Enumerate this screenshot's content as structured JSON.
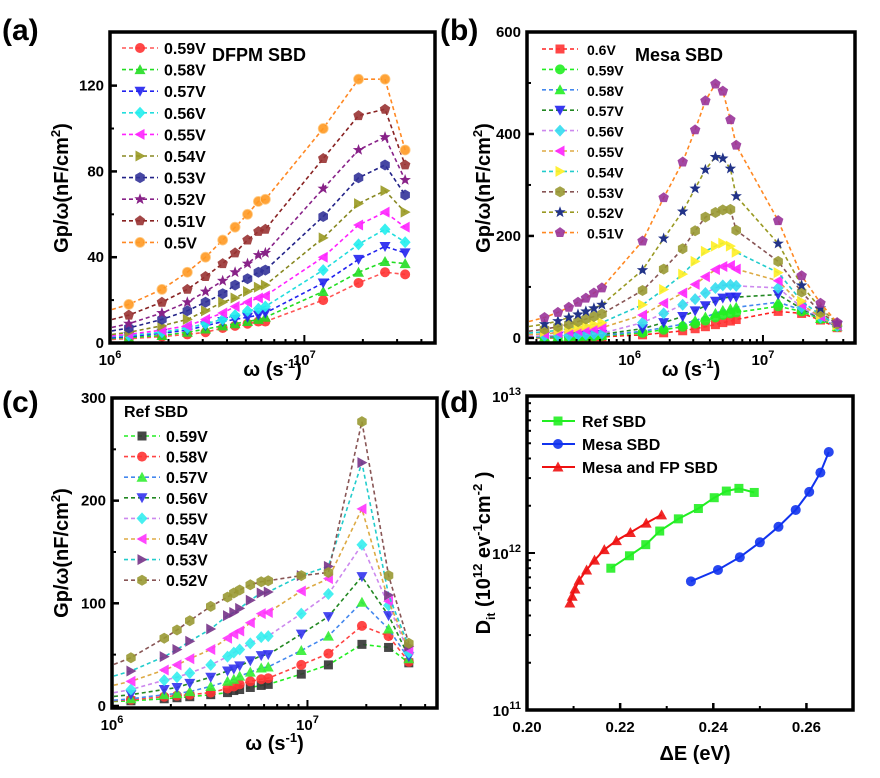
{
  "chart_data": [
    {
      "id": "a",
      "panel_label": "(a)",
      "type": "line",
      "title": "DFPM SBD",
      "xlabel": "ω (s⁻¹)",
      "ylabel": "Gp/ω(nF/cm²)",
      "xscale": "log",
      "xlim": [
        1000000,
        47000000
      ],
      "ylim": [
        0,
        145
      ],
      "yticks": [
        0,
        40,
        80,
        120
      ],
      "xticks": [
        {
          "value": 1000000,
          "base": "10",
          "exp": "6"
        },
        {
          "value": 10000000,
          "base": "10",
          "exp": "7"
        }
      ],
      "legend_position": "top-left",
      "x": [
        1250000,
        1850000,
        2500000,
        3100000,
        3800000,
        4400000,
        5100000,
        5800000,
        6300000,
        12500000,
        19000000,
        26000000,
        33000000
      ],
      "series": [
        {
          "name": "0.59V",
          "marker": "circle",
          "color": "#ff3333",
          "line_color": "#ff5555",
          "values": [
            2,
            3,
            4,
            5,
            7,
            8,
            9,
            10,
            10,
            20,
            28,
            33,
            32
          ]
        },
        {
          "name": "0.58V",
          "marker": "triangle-up",
          "color": "#22dd22",
          "line_color": "#22dd22",
          "values": [
            2.5,
            3.5,
            5,
            6.5,
            8,
            9,
            10,
            11,
            12,
            24,
            33,
            38,
            37
          ]
        },
        {
          "name": "0.57V",
          "marker": "triangle-down",
          "color": "#2222ee",
          "line_color": "#2222ee",
          "values": [
            3,
            4.5,
            6,
            8,
            10,
            11,
            12,
            13,
            14,
            28,
            39,
            45,
            42
          ]
        },
        {
          "name": "0.56V",
          "marker": "diamond",
          "color": "#22eeee",
          "line_color": "#22dddd",
          "values": [
            3.5,
            5,
            7,
            9,
            11,
            13,
            15,
            16,
            17,
            34,
            46,
            53,
            47
          ]
        },
        {
          "name": "0.55V",
          "marker": "triangle-left",
          "color": "#ff22ff",
          "line_color": "#ff22ff",
          "values": [
            4,
            6,
            8,
            11,
            14,
            17,
            19,
            21,
            22,
            40,
            55,
            61,
            54
          ]
        },
        {
          "name": "0.54V",
          "marker": "triangle-right",
          "color": "#999922",
          "line_color": "#888822",
          "values": [
            5,
            8,
            11,
            15,
            19,
            21,
            24,
            26,
            27,
            49,
            65,
            71,
            61
          ]
        },
        {
          "name": "0.53V",
          "marker": "hexagon",
          "color": "#333399",
          "line_color": "#222288",
          "values": [
            7,
            11,
            15,
            19,
            23,
            27,
            30,
            33,
            34,
            59,
            77,
            83,
            69
          ]
        },
        {
          "name": "0.52V",
          "marker": "star",
          "color": "#882288",
          "line_color": "#882288",
          "values": [
            9,
            14,
            19,
            24,
            29,
            33,
            37,
            41,
            42,
            72,
            90,
            96,
            76
          ]
        },
        {
          "name": "0.51V",
          "marker": "pentagon",
          "color": "#993333",
          "line_color": "#882222",
          "values": [
            13,
            19,
            25,
            31,
            37,
            42,
            48,
            52,
            53,
            86,
            106,
            109,
            83
          ]
        },
        {
          "name": "0.5V",
          "marker": "circle-open",
          "color": "#ff9922",
          "line_color": "#ff8822",
          "values": [
            18,
            25,
            33,
            40,
            48,
            54,
            60,
            66,
            67,
            100,
            123,
            123,
            90
          ]
        }
      ]
    },
    {
      "id": "b",
      "panel_label": "(b)",
      "type": "line",
      "title": "Mesa SBD",
      "xlabel": "ω (s⁻¹)",
      "ylabel": "Gp/ω(nF/cm²)",
      "xscale": "log",
      "xlim": [
        170000,
        49000000
      ],
      "ylim": [
        -10,
        600
      ],
      "yticks": [
        0,
        200,
        400,
        600
      ],
      "xticks": [
        {
          "value": 1000000,
          "base": "10",
          "exp": "6"
        },
        {
          "value": 10000000,
          "base": "10",
          "exp": "7"
        }
      ],
      "legend_position": "top-left",
      "x": [
        230000,
        290000,
        350000,
        410000,
        470000,
        540000,
        620000,
        1250000,
        1800000,
        2500000,
        3100000,
        3700000,
        4400000,
        5000000,
        5700000,
        6300000,
        13000000,
        19500000,
        27000000,
        36000000
      ],
      "series": [
        {
          "name": "0.6V",
          "marker": "square",
          "color": "#ff3333",
          "line_color": "#ff2222",
          "values": [
            0,
            0,
            1,
            1,
            1,
            2,
            2,
            6,
            10,
            14,
            18,
            22,
            26,
            30,
            33,
            36,
            52,
            48,
            35,
            20
          ]
        },
        {
          "name": "0.59V",
          "marker": "circle",
          "color": "#22ee22",
          "line_color": "#22ee22",
          "values": [
            1,
            1,
            2,
            2,
            3,
            3,
            4,
            10,
            16,
            22,
            28,
            34,
            40,
            45,
            48,
            50,
            62,
            52,
            37,
            22
          ]
        },
        {
          "name": "0.58V",
          "marker": "triangle-up",
          "color": "#22ee22",
          "line_color": "#4488ee",
          "values": [
            2,
            2,
            3,
            3,
            4,
            5,
            5,
            13,
            20,
            27,
            34,
            41,
            48,
            54,
            57,
            60,
            70,
            55,
            38,
            22
          ]
        },
        {
          "name": "0.57V",
          "marker": "triangle-down",
          "color": "#2222ee",
          "line_color": "#228822",
          "values": [
            3,
            3,
            4,
            5,
            5,
            6,
            7,
            18,
            30,
            42,
            53,
            63,
            72,
            78,
            80,
            80,
            85,
            57,
            39,
            23
          ]
        },
        {
          "name": "0.56V",
          "marker": "diamond",
          "color": "#33ddee",
          "line_color": "#cc88ee",
          "values": [
            4,
            5,
            5,
            6,
            7,
            8,
            9,
            30,
            48,
            65,
            76,
            88,
            98,
            103,
            104,
            102,
            98,
            60,
            40,
            23
          ]
        },
        {
          "name": "0.55V",
          "marker": "triangle-left",
          "color": "#ff22ff",
          "line_color": "#ddaa44",
          "values": [
            8,
            10,
            12,
            14,
            16,
            18,
            20,
            45,
            68,
            88,
            105,
            120,
            134,
            140,
            142,
            135,
            112,
            65,
            42,
            24
          ]
        },
        {
          "name": "0.54V",
          "marker": "triangle-right",
          "color": "#ffee22",
          "line_color": "#22cccc",
          "values": [
            12,
            15,
            18,
            21,
            24,
            27,
            30,
            65,
            95,
            125,
            150,
            170,
            180,
            186,
            180,
            168,
            128,
            72,
            45,
            25
          ]
        },
        {
          "name": "0.53V",
          "marker": "hexagon",
          "color": "#999933",
          "line_color": "#885555",
          "values": [
            17,
            22,
            27,
            32,
            37,
            42,
            47,
            93,
            135,
            175,
            210,
            237,
            246,
            251,
            252,
            211,
            150,
            90,
            50,
            27
          ]
        },
        {
          "name": "0.52V",
          "marker": "star",
          "color": "#223388",
          "line_color": "#999922",
          "values": [
            27,
            33,
            40,
            46,
            52,
            58,
            65,
            133,
            195,
            248,
            293,
            330,
            355,
            352,
            332,
            278,
            185,
            103,
            58,
            29
          ]
        },
        {
          "name": "0.51V",
          "marker": "pentagon",
          "color": "#993399",
          "line_color": "#ff8822",
          "values": [
            40,
            50,
            60,
            70,
            78,
            88,
            98,
            190,
            275,
            345,
            408,
            465,
            498,
            484,
            428,
            378,
            230,
            122,
            68,
            30
          ]
        }
      ]
    },
    {
      "id": "c",
      "panel_label": "(c)",
      "type": "line",
      "title": "Ref SBD",
      "xlabel": "ω (s⁻¹)",
      "ylabel": "Gp/ω(nF/cm²)",
      "xscale": "log",
      "xlim": [
        1000000,
        46000000
      ],
      "ylim": [
        -2,
        300
      ],
      "yticks": [
        0,
        100,
        200,
        300
      ],
      "xticks": [
        {
          "value": 1000000,
          "base": "10",
          "exp": "6"
        },
        {
          "value": 10000000,
          "base": "10",
          "exp": "7"
        }
      ],
      "legend_position": "top-left",
      "x": [
        1250000,
        1850000,
        2150000,
        2500000,
        3200000,
        3900000,
        4200000,
        4500000,
        5100000,
        5800000,
        6300000,
        9300000,
        12800000,
        19000000,
        26000000,
        33000000
      ],
      "series": [
        {
          "name": "0.59V",
          "marker": "square",
          "color": "#333333",
          "line_color": "#22ee22",
          "values": [
            5,
            7,
            8,
            9,
            11,
            13,
            15,
            16,
            18,
            20,
            21,
            31,
            40,
            60,
            57,
            42
          ]
        },
        {
          "name": "0.58V",
          "marker": "circle",
          "color": "#ff3333",
          "line_color": "#ff4444",
          "values": [
            6,
            9,
            10,
            11,
            13,
            17,
            19,
            21,
            24,
            26,
            27,
            40,
            51,
            78,
            68,
            43
          ]
        },
        {
          "name": "0.57V",
          "marker": "triangle-up",
          "color": "#33ee33",
          "line_color": "#4488ee",
          "values": [
            7,
            11,
            12,
            14,
            19,
            24,
            26,
            29,
            33,
            37,
            38,
            54,
            68,
            101,
            75,
            46
          ]
        },
        {
          "name": "0.56V",
          "marker": "triangle-down",
          "color": "#3333ee",
          "line_color": "#228822",
          "values": [
            11,
            16,
            18,
            22,
            28,
            34,
            36,
            39,
            44,
            49,
            50,
            70,
            87,
            126,
            88,
            48
          ]
        },
        {
          "name": "0.55V",
          "marker": "diamond",
          "color": "#33eeee",
          "line_color": "#cc88ee",
          "values": [
            16,
            25,
            28,
            32,
            40,
            48,
            52,
            55,
            61,
            67,
            68,
            90,
            109,
            157,
            98,
            52
          ]
        },
        {
          "name": "0.54V",
          "marker": "triangle-left",
          "color": "#ff33ff",
          "line_color": "#ddaa44",
          "values": [
            24,
            35,
            40,
            46,
            55,
            66,
            70,
            73,
            81,
            90,
            91,
            112,
            124,
            192,
            102,
            55
          ]
        },
        {
          "name": "0.53V",
          "marker": "triangle-right",
          "color": "#773388",
          "line_color": "#22cccc",
          "values": [
            34,
            48,
            55,
            63,
            75,
            88,
            91,
            95,
            103,
            110,
            111,
            127,
            136,
            237,
            108,
            58
          ]
        },
        {
          "name": "0.52V",
          "marker": "hexagon",
          "color": "#999933",
          "line_color": "#885555",
          "values": [
            47,
            66,
            74,
            83,
            97,
            106,
            110,
            113,
            118,
            121,
            122,
            127,
            130,
            277,
            127,
            61
          ]
        }
      ]
    },
    {
      "id": "d",
      "panel_label": "(d)",
      "type": "line",
      "xlabel": "ΔE (eV)",
      "ylabel": "D_it (10^12 ev^-1 cm^-2)",
      "yscale": "log",
      "xlim": [
        0.2,
        0.27
      ],
      "ylim": [
        100000000000.0,
        10000000000000.0
      ],
      "xticks": [
        0.2,
        0.22,
        0.24,
        0.26
      ],
      "xtick_labels": [
        "0.20",
        "0.22",
        "0.24",
        "0.26"
      ],
      "yticks": [
        {
          "value": 100000000000.0,
          "base": "10",
          "exp": "11"
        },
        {
          "value": 1000000000000.0,
          "base": "10",
          "exp": "12"
        },
        {
          "value": 10000000000000.0,
          "base": "10",
          "exp": "13"
        }
      ],
      "legend_position": "top-left",
      "series": [
        {
          "name": "Ref SBD",
          "marker": "square",
          "color": "#22ee22",
          "x": [
            0.218,
            0.222,
            0.2255,
            0.2285,
            0.2325,
            0.2368,
            0.2402,
            0.2428,
            0.2455,
            0.2488
          ],
          "values": [
            800000000000.0,
            960000000000.0,
            1130000000000.0,
            1380000000000.0,
            1650000000000.0,
            1920000000000.0,
            2250000000000.0,
            2480000000000.0,
            2580000000000.0,
            2430000000000.0
          ]
        },
        {
          "name": "Mesa SBD",
          "marker": "circle",
          "color": "#1133ee",
          "x": [
            0.2352,
            0.241,
            0.2457,
            0.25,
            0.254,
            0.2577,
            0.2606,
            0.263,
            0.2648
          ],
          "values": [
            660000000000.0,
            780000000000.0,
            940000000000.0,
            1170000000000.0,
            1470000000000.0,
            1880000000000.0,
            2450000000000.0,
            3250000000000.0,
            4400000000000.0
          ]
        },
        {
          "name": "Mesa and FP SBD",
          "marker": "triangle-up",
          "color": "#ee1111",
          "x": [
            0.2092,
            0.2097,
            0.2103,
            0.2112,
            0.2128,
            0.2145,
            0.2166,
            0.2192,
            0.2222,
            0.2256,
            0.2289
          ],
          "values": [
            480000000000.0,
            530000000000.0,
            590000000000.0,
            670000000000.0,
            780000000000.0,
            900000000000.0,
            1050000000000.0,
            1200000000000.0,
            1350000000000.0,
            1550000000000.0,
            1750000000000.0
          ]
        }
      ]
    }
  ]
}
